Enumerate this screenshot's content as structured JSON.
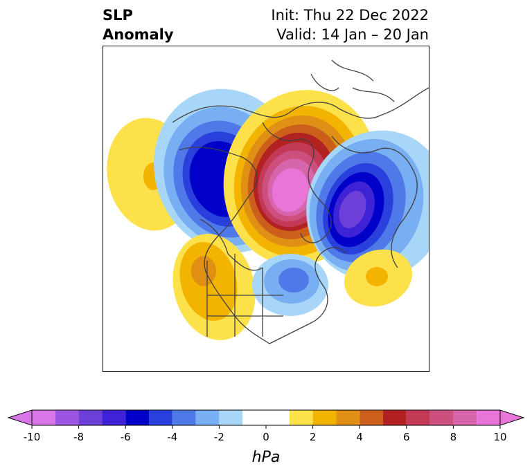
{
  "title_left": {
    "line1": "SLP",
    "line2": "Anomaly"
  },
  "title_right": {
    "init": "Init: Thu 22 Dec 2022",
    "valid": "Valid: 14 Jan – 20 Jan"
  },
  "colorbar": {
    "label": "hPa",
    "levels": [
      -10,
      -9,
      -8,
      -7,
      -6,
      -5,
      -4,
      -3,
      -2,
      -1,
      1,
      2,
      3,
      4,
      5,
      6,
      7,
      8,
      9,
      10
    ],
    "tick_values": [
      -10,
      -8,
      -6,
      -4,
      -2,
      0,
      2,
      4,
      6,
      8,
      10
    ],
    "tick_labels": [
      "-10",
      "-8",
      "-6",
      "-4",
      "-2",
      "0",
      "2",
      "4",
      "6",
      "8",
      "10"
    ],
    "colors": [
      "#d778e6",
      "#9b55e0",
      "#6d3fd9",
      "#3d22d6",
      "#0000c8",
      "#2a40dc",
      "#4f78e8",
      "#78aef2",
      "#a8d6f8",
      "#ffffff",
      "#fde14a",
      "#f2b400",
      "#e09015",
      "#cc601a",
      "#b22222",
      "#c23a55",
      "#cc4f7d",
      "#d765ab",
      "#e875d8"
    ],
    "extend": "both"
  },
  "map": {
    "projection": "north-polar stereographic",
    "anomaly_centers": [
      {
        "region": "Western Canada / Gulf of Alaska",
        "sign": "negative",
        "peak_hPa": -7
      },
      {
        "region": "Arctic Ocean / Greenland",
        "sign": "positive",
        "peak_hPa": 9
      },
      {
        "region": "Northern Europe / Scandinavia",
        "sign": "negative",
        "peak_hPa": -7
      },
      {
        "region": "North Pacific",
        "sign": "positive",
        "peak_hPa": 3
      },
      {
        "region": "Western North America",
        "sign": "positive",
        "peak_hPa": 4
      },
      {
        "region": "Eastern Canada",
        "sign": "negative",
        "peak_hPa": -3
      },
      {
        "region": "Central Atlantic",
        "sign": "positive",
        "peak_hPa": 3
      }
    ]
  }
}
